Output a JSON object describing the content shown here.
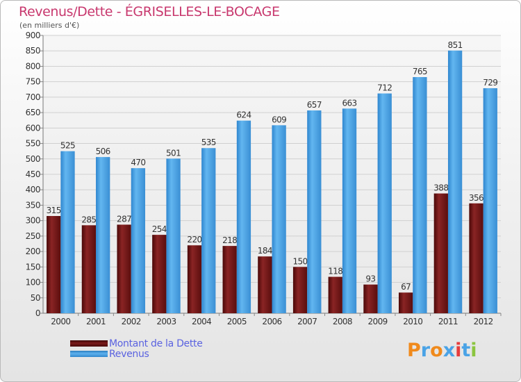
{
  "title": "Revenus/Dette - ÉGRISELLES-LE-BOCAGE",
  "subtitle": "(en milliers d'€)",
  "logo": {
    "text": "Proxiti"
  },
  "chart_data": {
    "type": "bar",
    "categories": [
      "2000",
      "2001",
      "2002",
      "2003",
      "2004",
      "2005",
      "2006",
      "2007",
      "2008",
      "2009",
      "2010",
      "2011",
      "2012"
    ],
    "series": [
      {
        "name": "Montant de la Dette",
        "color": "#7a1a1a",
        "values": [
          315,
          285,
          287,
          254,
          220,
          218,
          184,
          150,
          118,
          93,
          67,
          388,
          356
        ]
      },
      {
        "name": "Revenus",
        "color": "#4aa3e6",
        "values": [
          525,
          506,
          470,
          501,
          535,
          624,
          609,
          657,
          663,
          712,
          765,
          851,
          729
        ]
      }
    ],
    "ylim": [
      0,
      900
    ],
    "yticks": [
      0,
      50,
      100,
      150,
      200,
      250,
      300,
      350,
      400,
      450,
      500,
      550,
      600,
      650,
      700,
      750,
      800,
      850,
      900
    ],
    "grid": true,
    "legend_position": "bottom-left"
  }
}
